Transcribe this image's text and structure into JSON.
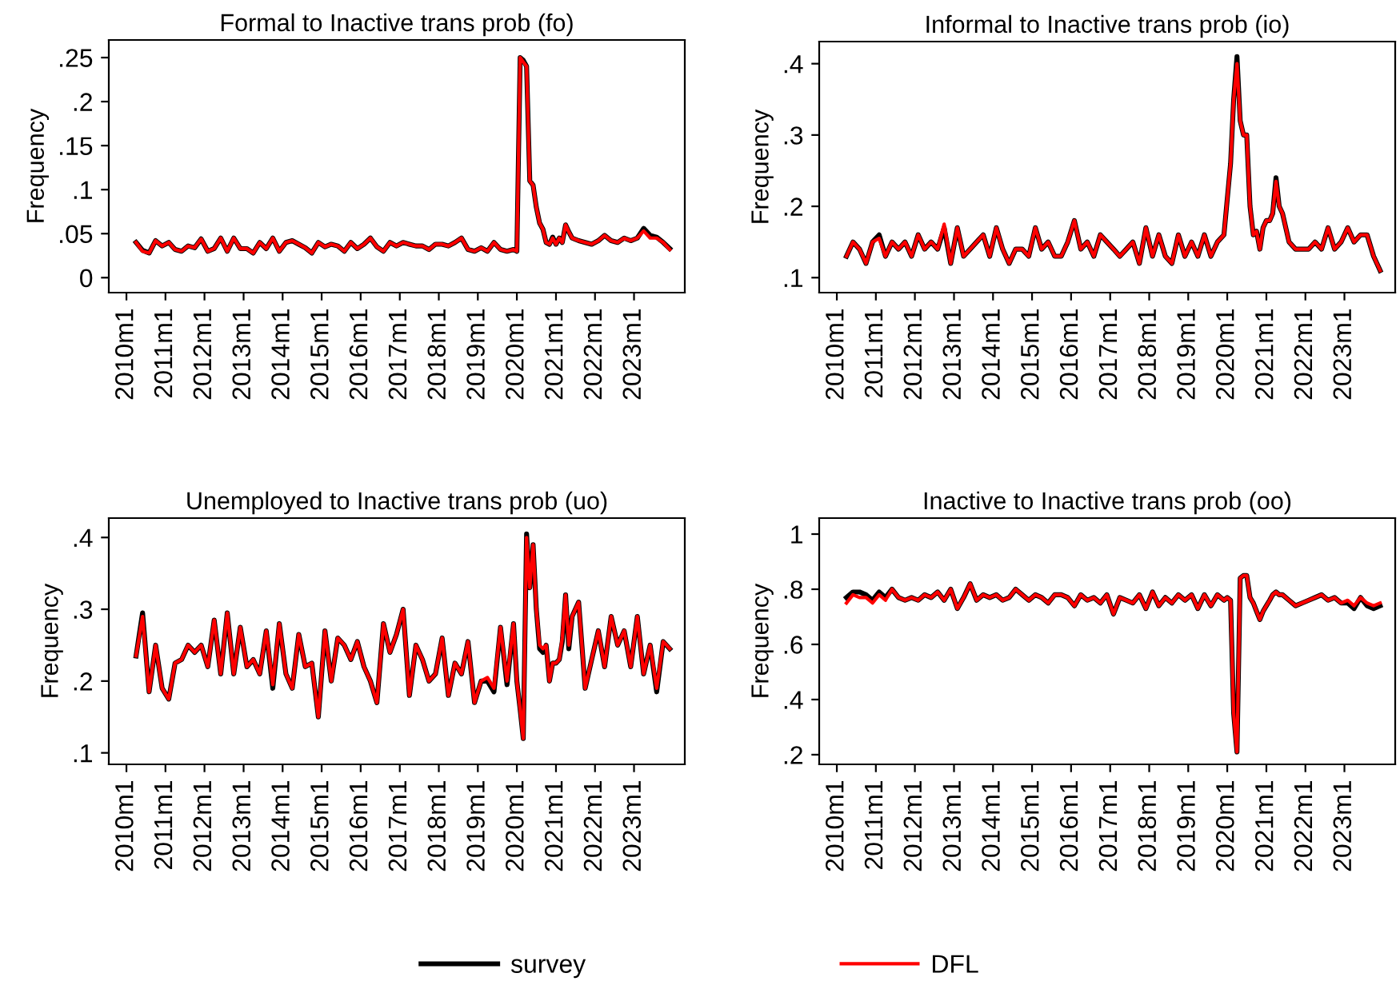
{
  "chart_data": [
    {
      "type": "line",
      "title": "Formal to Inactive trans prob (fo)",
      "ylabel": "Frequency",
      "x": [
        "2010-04",
        "2010-06",
        "2010-08",
        "2010-10",
        "2010-12",
        "2011-02",
        "2011-04",
        "2011-06",
        "2011-08",
        "2011-10",
        "2011-12",
        "2012-02",
        "2012-04",
        "2012-06",
        "2012-08",
        "2012-10",
        "2012-12",
        "2013-02",
        "2013-04",
        "2013-06",
        "2013-08",
        "2013-10",
        "2013-12",
        "2014-02",
        "2014-04",
        "2014-06",
        "2014-08",
        "2014-10",
        "2014-12",
        "2015-02",
        "2015-04",
        "2015-06",
        "2015-08",
        "2015-10",
        "2015-12",
        "2016-02",
        "2016-04",
        "2016-06",
        "2016-08",
        "2016-10",
        "2016-12",
        "2017-02",
        "2017-04",
        "2017-06",
        "2017-08",
        "2017-10",
        "2017-12",
        "2018-02",
        "2018-04",
        "2018-06",
        "2018-08",
        "2018-10",
        "2018-12",
        "2019-02",
        "2019-04",
        "2019-06",
        "2019-08",
        "2019-10",
        "2019-12",
        "2020-01",
        "2020-02",
        "2020-03",
        "2020-04",
        "2020-05",
        "2020-06",
        "2020-07",
        "2020-08",
        "2020-09",
        "2020-10",
        "2020-11",
        "2020-12",
        "2021-01",
        "2021-02",
        "2021-03",
        "2021-04",
        "2021-05",
        "2021-06",
        "2021-08",
        "2021-10",
        "2021-12",
        "2022-02",
        "2022-04",
        "2022-06",
        "2022-08",
        "2022-10",
        "2022-12",
        "2023-02",
        "2023-04",
        "2023-06",
        "2023-08",
        "2023-10",
        "2023-12"
      ],
      "xlim": [
        "2009-07-20",
        "2024-04-20"
      ],
      "xticks": [
        {
          "value": "2010-01",
          "label": "2010m1"
        },
        {
          "value": "2011-01",
          "label": "2011m1"
        },
        {
          "value": "2012-01",
          "label": "2012m1"
        },
        {
          "value": "2013-01",
          "label": "2013m1"
        },
        {
          "value": "2014-01",
          "label": "2014m1"
        },
        {
          "value": "2015-01",
          "label": "2015m1"
        },
        {
          "value": "2016-01",
          "label": "2016m1"
        },
        {
          "value": "2017-01",
          "label": "2017m1"
        },
        {
          "value": "2018-01",
          "label": "2018m1"
        },
        {
          "value": "2019-01",
          "label": "2019m1"
        },
        {
          "value": "2020-01",
          "label": "2020m1"
        },
        {
          "value": "2021-01",
          "label": "2021m1"
        },
        {
          "value": "2022-01",
          "label": "2022m1"
        },
        {
          "value": "2023-01",
          "label": "2023m1"
        }
      ],
      "ylim": [
        -0.017,
        0.27
      ],
      "yticks": [
        0,
        {
          "value": 0.05,
          "label": ".05"
        },
        {
          "value": 0.1,
          "label": ".1"
        },
        {
          "value": 0.15,
          "label": ".15"
        },
        {
          "value": 0.2,
          "label": ".2"
        },
        {
          "value": 0.25,
          "label": ".25"
        }
      ],
      "grid": false,
      "series": [
        {
          "color": "#000000",
          "values": [
            0.04,
            0.031,
            0.028,
            0.042,
            0.036,
            0.04,
            0.032,
            0.03,
            0.036,
            0.034,
            0.044,
            0.03,
            0.033,
            0.045,
            0.03,
            0.045,
            0.033,
            0.033,
            0.028,
            0.04,
            0.033,
            0.045,
            0.03,
            0.04,
            0.042,
            0.038,
            0.034,
            0.028,
            0.04,
            0.035,
            0.038,
            0.036,
            0.03,
            0.04,
            0.033,
            0.038,
            0.045,
            0.035,
            0.03,
            0.04,
            0.036,
            0.04,
            0.038,
            0.036,
            0.036,
            0.032,
            0.038,
            0.038,
            0.036,
            0.04,
            0.045,
            0.032,
            0.03,
            0.034,
            0.03,
            0.04,
            0.032,
            0.03,
            0.032,
            0.03,
            0.25,
            0.247,
            0.24,
            0.11,
            0.105,
            0.08,
            0.062,
            0.055,
            0.04,
            0.038,
            0.046,
            0.038,
            0.045,
            0.04,
            0.06,
            0.052,
            0.045,
            0.042,
            0.04,
            0.038,
            0.042,
            0.048,
            0.042,
            0.04,
            0.045,
            0.042,
            0.045,
            0.056,
            0.048,
            0.046,
            0.04,
            0.033
          ]
        },
        {
          "color": "#ff0000",
          "values": [
            0.04,
            0.03,
            0.028,
            0.042,
            0.036,
            0.04,
            0.032,
            0.03,
            0.036,
            0.034,
            0.044,
            0.03,
            0.033,
            0.045,
            0.03,
            0.045,
            0.033,
            0.033,
            0.028,
            0.04,
            0.033,
            0.045,
            0.03,
            0.04,
            0.042,
            0.038,
            0.034,
            0.028,
            0.04,
            0.035,
            0.038,
            0.036,
            0.03,
            0.04,
            0.033,
            0.038,
            0.045,
            0.035,
            0.03,
            0.04,
            0.036,
            0.04,
            0.038,
            0.036,
            0.036,
            0.032,
            0.038,
            0.038,
            0.036,
            0.04,
            0.045,
            0.032,
            0.03,
            0.034,
            0.03,
            0.04,
            0.032,
            0.03,
            0.032,
            0.03,
            0.25,
            0.245,
            0.24,
            0.11,
            0.105,
            0.08,
            0.062,
            0.055,
            0.04,
            0.038,
            0.045,
            0.038,
            0.045,
            0.04,
            0.06,
            0.052,
            0.045,
            0.042,
            0.04,
            0.038,
            0.042,
            0.048,
            0.042,
            0.04,
            0.045,
            0.042,
            0.045,
            0.053,
            0.045,
            0.045,
            0.04,
            0.032
          ]
        }
      ]
    },
    {
      "type": "line",
      "title": "Informal to Inactive trans prob (io)",
      "ylabel": "Frequency",
      "x": [
        "2010-04",
        "2010-06",
        "2010-08",
        "2010-10",
        "2010-12",
        "2011-02",
        "2011-04",
        "2011-06",
        "2011-08",
        "2011-10",
        "2011-12",
        "2012-02",
        "2012-04",
        "2012-06",
        "2012-08",
        "2012-10",
        "2012-12",
        "2013-02",
        "2013-04",
        "2013-06",
        "2013-08",
        "2013-10",
        "2013-12",
        "2014-02",
        "2014-04",
        "2014-06",
        "2014-08",
        "2014-10",
        "2014-12",
        "2015-02",
        "2015-04",
        "2015-06",
        "2015-08",
        "2015-10",
        "2015-12",
        "2016-02",
        "2016-04",
        "2016-06",
        "2016-08",
        "2016-10",
        "2016-12",
        "2017-02",
        "2017-04",
        "2017-06",
        "2017-08",
        "2017-10",
        "2017-12",
        "2018-02",
        "2018-04",
        "2018-06",
        "2018-08",
        "2018-10",
        "2018-12",
        "2019-02",
        "2019-04",
        "2019-06",
        "2019-08",
        "2019-10",
        "2019-12",
        "2020-01",
        "2020-02",
        "2020-03",
        "2020-04",
        "2020-05",
        "2020-06",
        "2020-07",
        "2020-08",
        "2020-09",
        "2020-10",
        "2020-11",
        "2020-12",
        "2021-01",
        "2021-02",
        "2021-03",
        "2021-04",
        "2021-05",
        "2021-06",
        "2021-08",
        "2021-10",
        "2021-12",
        "2022-02",
        "2022-04",
        "2022-06",
        "2022-08",
        "2022-10",
        "2022-12",
        "2023-02",
        "2023-04",
        "2023-06",
        "2023-08",
        "2023-10",
        "2023-12"
      ],
      "xlim": [
        "2009-07-20",
        "2024-04-20"
      ],
      "xticks": [
        {
          "value": "2010-01",
          "label": "2010m1"
        },
        {
          "value": "2011-01",
          "label": "2011m1"
        },
        {
          "value": "2012-01",
          "label": "2012m1"
        },
        {
          "value": "2013-01",
          "label": "2013m1"
        },
        {
          "value": "2014-01",
          "label": "2014m1"
        },
        {
          "value": "2015-01",
          "label": "2015m1"
        },
        {
          "value": "2016-01",
          "label": "2016m1"
        },
        {
          "value": "2017-01",
          "label": "2017m1"
        },
        {
          "value": "2018-01",
          "label": "2018m1"
        },
        {
          "value": "2019-01",
          "label": "2019m1"
        },
        {
          "value": "2020-01",
          "label": "2020m1"
        },
        {
          "value": "2021-01",
          "label": "2021m1"
        },
        {
          "value": "2022-01",
          "label": "2022m1"
        },
        {
          "value": "2023-01",
          "label": "2023m1"
        }
      ],
      "ylim": [
        0.079,
        0.431
      ],
      "yticks": [
        {
          "value": 0.1,
          "label": ".1"
        },
        {
          "value": 0.2,
          "label": ".2"
        },
        {
          "value": 0.3,
          "label": ".3"
        },
        {
          "value": 0.4,
          "label": ".4"
        }
      ],
      "grid": false,
      "series": [
        {
          "color": "#000000",
          "values": [
            0.13,
            0.15,
            0.14,
            0.12,
            0.15,
            0.16,
            0.13,
            0.15,
            0.14,
            0.15,
            0.13,
            0.16,
            0.14,
            0.15,
            0.14,
            0.17,
            0.12,
            0.17,
            0.13,
            0.14,
            0.15,
            0.16,
            0.13,
            0.17,
            0.14,
            0.12,
            0.14,
            0.14,
            0.13,
            0.17,
            0.14,
            0.15,
            0.13,
            0.13,
            0.15,
            0.18,
            0.14,
            0.15,
            0.13,
            0.16,
            0.15,
            0.14,
            0.13,
            0.14,
            0.15,
            0.12,
            0.17,
            0.13,
            0.16,
            0.13,
            0.12,
            0.16,
            0.13,
            0.15,
            0.13,
            0.16,
            0.13,
            0.15,
            0.16,
            0.21,
            0.26,
            0.35,
            0.41,
            0.32,
            0.3,
            0.3,
            0.2,
            0.16,
            0.165,
            0.14,
            0.17,
            0.18,
            0.18,
            0.19,
            0.24,
            0.2,
            0.19,
            0.15,
            0.14,
            0.14,
            0.14,
            0.15,
            0.14,
            0.17,
            0.14,
            0.15,
            0.17,
            0.15,
            0.16,
            0.16,
            0.13,
            0.11
          ]
        },
        {
          "color": "#ff0000",
          "values": [
            0.13,
            0.15,
            0.14,
            0.12,
            0.15,
            0.155,
            0.13,
            0.15,
            0.14,
            0.15,
            0.13,
            0.16,
            0.14,
            0.15,
            0.14,
            0.175,
            0.12,
            0.17,
            0.13,
            0.14,
            0.15,
            0.16,
            0.13,
            0.17,
            0.14,
            0.12,
            0.14,
            0.14,
            0.13,
            0.17,
            0.14,
            0.15,
            0.13,
            0.13,
            0.15,
            0.18,
            0.14,
            0.15,
            0.13,
            0.16,
            0.15,
            0.14,
            0.13,
            0.14,
            0.15,
            0.12,
            0.17,
            0.13,
            0.16,
            0.13,
            0.12,
            0.16,
            0.13,
            0.15,
            0.13,
            0.16,
            0.13,
            0.15,
            0.16,
            0.21,
            0.26,
            0.35,
            0.4,
            0.32,
            0.3,
            0.3,
            0.2,
            0.16,
            0.165,
            0.14,
            0.17,
            0.18,
            0.18,
            0.19,
            0.235,
            0.2,
            0.19,
            0.15,
            0.14,
            0.14,
            0.14,
            0.15,
            0.14,
            0.17,
            0.14,
            0.15,
            0.17,
            0.15,
            0.16,
            0.16,
            0.13,
            0.11
          ]
        }
      ]
    },
    {
      "type": "line",
      "title": "Unemployed to Inactive trans prob (uo)",
      "ylabel": "Frequency",
      "x": [
        "2010-04",
        "2010-06",
        "2010-08",
        "2010-10",
        "2010-12",
        "2011-02",
        "2011-04",
        "2011-06",
        "2011-08",
        "2011-10",
        "2011-12",
        "2012-02",
        "2012-04",
        "2012-06",
        "2012-08",
        "2012-10",
        "2012-12",
        "2013-02",
        "2013-04",
        "2013-06",
        "2013-08",
        "2013-10",
        "2013-12",
        "2014-02",
        "2014-04",
        "2014-06",
        "2014-08",
        "2014-10",
        "2014-12",
        "2015-02",
        "2015-04",
        "2015-06",
        "2015-08",
        "2015-10",
        "2015-12",
        "2016-02",
        "2016-04",
        "2016-06",
        "2016-08",
        "2016-10",
        "2016-12",
        "2017-02",
        "2017-04",
        "2017-06",
        "2017-08",
        "2017-10",
        "2017-12",
        "2018-02",
        "2018-04",
        "2018-06",
        "2018-08",
        "2018-10",
        "2018-12",
        "2019-02",
        "2019-04",
        "2019-06",
        "2019-08",
        "2019-10",
        "2019-12",
        "2020-01",
        "2020-02",
        "2020-03",
        "2020-04",
        "2020-05",
        "2020-06",
        "2020-07",
        "2020-08",
        "2020-09",
        "2020-10",
        "2020-11",
        "2020-12",
        "2021-01",
        "2021-02",
        "2021-03",
        "2021-04",
        "2021-05",
        "2021-06",
        "2021-08",
        "2021-10",
        "2021-12",
        "2022-02",
        "2022-04",
        "2022-06",
        "2022-08",
        "2022-10",
        "2022-12",
        "2023-02",
        "2023-04",
        "2023-06",
        "2023-08",
        "2023-10",
        "2023-12"
      ],
      "xlim": [
        "2009-07-20",
        "2024-04-20"
      ],
      "xticks": [
        {
          "value": "2010-01",
          "label": "2010m1"
        },
        {
          "value": "2011-01",
          "label": "2011m1"
        },
        {
          "value": "2012-01",
          "label": "2012m1"
        },
        {
          "value": "2013-01",
          "label": "2013m1"
        },
        {
          "value": "2014-01",
          "label": "2014m1"
        },
        {
          "value": "2015-01",
          "label": "2015m1"
        },
        {
          "value": "2016-01",
          "label": "2016m1"
        },
        {
          "value": "2017-01",
          "label": "2017m1"
        },
        {
          "value": "2018-01",
          "label": "2018m1"
        },
        {
          "value": "2019-01",
          "label": "2019m1"
        },
        {
          "value": "2020-01",
          "label": "2020m1"
        },
        {
          "value": "2021-01",
          "label": "2021m1"
        },
        {
          "value": "2022-01",
          "label": "2022m1"
        },
        {
          "value": "2023-01",
          "label": "2023m1"
        }
      ],
      "ylim": [
        0.084,
        0.427
      ],
      "yticks": [
        {
          "value": 0.1,
          "label": ".1"
        },
        {
          "value": 0.2,
          "label": ".2"
        },
        {
          "value": 0.3,
          "label": ".3"
        },
        {
          "value": 0.4,
          "label": ".4"
        }
      ],
      "grid": false,
      "series": [
        {
          "color": "#000000",
          "values": [
            0.235,
            0.295,
            0.185,
            0.25,
            0.19,
            0.175,
            0.225,
            0.23,
            0.25,
            0.24,
            0.25,
            0.22,
            0.285,
            0.21,
            0.295,
            0.21,
            0.275,
            0.22,
            0.23,
            0.21,
            0.27,
            0.19,
            0.28,
            0.21,
            0.19,
            0.265,
            0.22,
            0.225,
            0.15,
            0.27,
            0.2,
            0.26,
            0.25,
            0.23,
            0.255,
            0.22,
            0.2,
            0.17,
            0.28,
            0.24,
            0.265,
            0.3,
            0.18,
            0.25,
            0.23,
            0.2,
            0.21,
            0.26,
            0.18,
            0.225,
            0.21,
            0.255,
            0.17,
            0.2,
            0.2,
            0.185,
            0.275,
            0.195,
            0.28,
            0.2,
            0.16,
            0.12,
            0.405,
            0.33,
            0.39,
            0.3,
            0.245,
            0.24,
            0.25,
            0.2,
            0.225,
            0.225,
            0.23,
            0.255,
            0.32,
            0.245,
            0.29,
            0.31,
            0.19,
            0.23,
            0.27,
            0.22,
            0.29,
            0.25,
            0.27,
            0.22,
            0.29,
            0.21,
            0.25,
            0.185,
            0.255,
            0.245
          ]
        },
        {
          "color": "#ff0000",
          "values": [
            0.235,
            0.29,
            0.185,
            0.25,
            0.19,
            0.175,
            0.225,
            0.23,
            0.25,
            0.24,
            0.25,
            0.22,
            0.285,
            0.21,
            0.295,
            0.21,
            0.275,
            0.22,
            0.23,
            0.21,
            0.27,
            0.195,
            0.28,
            0.21,
            0.19,
            0.265,
            0.22,
            0.225,
            0.15,
            0.27,
            0.2,
            0.26,
            0.25,
            0.23,
            0.255,
            0.22,
            0.2,
            0.17,
            0.28,
            0.24,
            0.265,
            0.3,
            0.18,
            0.25,
            0.23,
            0.2,
            0.21,
            0.26,
            0.18,
            0.225,
            0.21,
            0.255,
            0.17,
            0.2,
            0.205,
            0.19,
            0.275,
            0.2,
            0.28,
            0.2,
            0.16,
            0.12,
            0.4,
            0.33,
            0.39,
            0.3,
            0.25,
            0.245,
            0.25,
            0.2,
            0.225,
            0.225,
            0.23,
            0.26,
            0.32,
            0.25,
            0.29,
            0.31,
            0.19,
            0.23,
            0.27,
            0.22,
            0.29,
            0.25,
            0.27,
            0.22,
            0.29,
            0.21,
            0.25,
            0.19,
            0.255,
            0.245
          ]
        }
      ]
    },
    {
      "type": "line",
      "title": "Inactive to Inactive trans prob (oo)",
      "ylabel": "Frequency",
      "x": [
        "2010-04",
        "2010-06",
        "2010-08",
        "2010-10",
        "2010-12",
        "2011-02",
        "2011-04",
        "2011-06",
        "2011-08",
        "2011-10",
        "2011-12",
        "2012-02",
        "2012-04",
        "2012-06",
        "2012-08",
        "2012-10",
        "2012-12",
        "2013-02",
        "2013-04",
        "2013-06",
        "2013-08",
        "2013-10",
        "2013-12",
        "2014-02",
        "2014-04",
        "2014-06",
        "2014-08",
        "2014-10",
        "2014-12",
        "2015-02",
        "2015-04",
        "2015-06",
        "2015-08",
        "2015-10",
        "2015-12",
        "2016-02",
        "2016-04",
        "2016-06",
        "2016-08",
        "2016-10",
        "2016-12",
        "2017-02",
        "2017-04",
        "2017-06",
        "2017-08",
        "2017-10",
        "2017-12",
        "2018-02",
        "2018-04",
        "2018-06",
        "2018-08",
        "2018-10",
        "2018-12",
        "2019-02",
        "2019-04",
        "2019-06",
        "2019-08",
        "2019-10",
        "2019-12",
        "2020-01",
        "2020-02",
        "2020-03",
        "2020-04",
        "2020-05",
        "2020-06",
        "2020-07",
        "2020-08",
        "2020-09",
        "2020-10",
        "2020-11",
        "2020-12",
        "2021-01",
        "2021-02",
        "2021-03",
        "2021-04",
        "2021-05",
        "2021-06",
        "2021-08",
        "2021-10",
        "2021-12",
        "2022-02",
        "2022-04",
        "2022-06",
        "2022-08",
        "2022-10",
        "2022-12",
        "2023-02",
        "2023-04",
        "2023-06",
        "2023-08",
        "2023-10",
        "2023-12"
      ],
      "xlim": [
        "2009-07-20",
        "2024-04-20"
      ],
      "xticks": [
        {
          "value": "2010-01",
          "label": "2010m1"
        },
        {
          "value": "2011-01",
          "label": "2011m1"
        },
        {
          "value": "2012-01",
          "label": "2012m1"
        },
        {
          "value": "2013-01",
          "label": "2013m1"
        },
        {
          "value": "2014-01",
          "label": "2014m1"
        },
        {
          "value": "2015-01",
          "label": "2015m1"
        },
        {
          "value": "2016-01",
          "label": "2016m1"
        },
        {
          "value": "2017-01",
          "label": "2017m1"
        },
        {
          "value": "2018-01",
          "label": "2018m1"
        },
        {
          "value": "2019-01",
          "label": "2019m1"
        },
        {
          "value": "2020-01",
          "label": "2020m1"
        },
        {
          "value": "2021-01",
          "label": "2021m1"
        },
        {
          "value": "2022-01",
          "label": "2022m1"
        },
        {
          "value": "2023-01",
          "label": "2023m1"
        }
      ],
      "ylim": [
        0.165,
        1.058
      ],
      "yticks": [
        {
          "value": 0.2,
          "label": ".2"
        },
        {
          "value": 0.4,
          "label": ".4"
        },
        {
          "value": 0.6,
          "label": ".6"
        },
        {
          "value": 0.8,
          "label": ".8"
        },
        1
      ],
      "grid": false,
      "legend": "bottom",
      "series": [
        {
          "name": "survey",
          "color": "#000000",
          "values": [
            0.77,
            0.79,
            0.79,
            0.78,
            0.76,
            0.79,
            0.77,
            0.8,
            0.77,
            0.76,
            0.77,
            0.76,
            0.78,
            0.77,
            0.79,
            0.76,
            0.8,
            0.73,
            0.77,
            0.82,
            0.76,
            0.78,
            0.77,
            0.78,
            0.76,
            0.77,
            0.8,
            0.78,
            0.76,
            0.78,
            0.77,
            0.75,
            0.78,
            0.78,
            0.77,
            0.74,
            0.78,
            0.76,
            0.77,
            0.75,
            0.78,
            0.71,
            0.77,
            0.76,
            0.75,
            0.78,
            0.73,
            0.79,
            0.74,
            0.77,
            0.75,
            0.78,
            0.76,
            0.78,
            0.73,
            0.78,
            0.74,
            0.78,
            0.76,
            0.77,
            0.76,
            0.35,
            0.21,
            0.84,
            0.85,
            0.85,
            0.77,
            0.75,
            0.72,
            0.69,
            0.72,
            0.74,
            0.76,
            0.78,
            0.79,
            0.78,
            0.78,
            0.76,
            0.74,
            0.75,
            0.76,
            0.77,
            0.78,
            0.76,
            0.77,
            0.75,
            0.75,
            0.73,
            0.77,
            0.74,
            0.73,
            0.74
          ]
        },
        {
          "name": "DFL",
          "color": "#ff0000",
          "values": [
            0.75,
            0.78,
            0.77,
            0.77,
            0.75,
            0.78,
            0.76,
            0.8,
            0.77,
            0.76,
            0.77,
            0.76,
            0.78,
            0.77,
            0.79,
            0.76,
            0.8,
            0.73,
            0.77,
            0.82,
            0.76,
            0.78,
            0.77,
            0.78,
            0.76,
            0.77,
            0.8,
            0.78,
            0.76,
            0.78,
            0.77,
            0.75,
            0.78,
            0.78,
            0.77,
            0.74,
            0.78,
            0.76,
            0.77,
            0.75,
            0.78,
            0.71,
            0.77,
            0.76,
            0.75,
            0.78,
            0.73,
            0.79,
            0.74,
            0.77,
            0.75,
            0.78,
            0.76,
            0.78,
            0.73,
            0.78,
            0.74,
            0.78,
            0.76,
            0.77,
            0.76,
            0.35,
            0.21,
            0.84,
            0.85,
            0.85,
            0.77,
            0.75,
            0.72,
            0.69,
            0.72,
            0.74,
            0.76,
            0.78,
            0.79,
            0.78,
            0.78,
            0.76,
            0.74,
            0.75,
            0.76,
            0.77,
            0.78,
            0.76,
            0.77,
            0.75,
            0.76,
            0.74,
            0.77,
            0.75,
            0.74,
            0.75
          ]
        }
      ]
    }
  ]
}
